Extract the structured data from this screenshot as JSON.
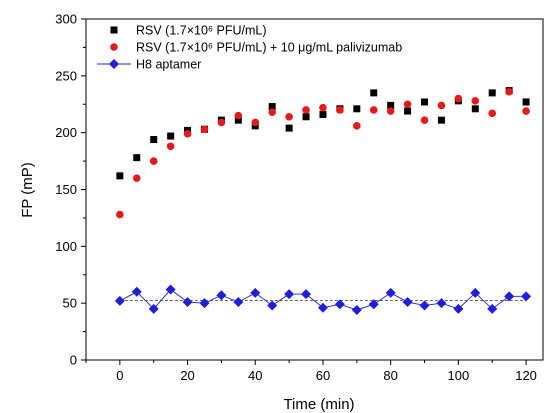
{
  "chart_data": {
    "type": "scatter",
    "xlabel": "Time (min)",
    "ylabel": "FP (mP)",
    "xlim": [
      -10,
      125
    ],
    "ylim": [
      0,
      300
    ],
    "xticks": [
      0,
      20,
      40,
      60,
      80,
      100,
      120
    ],
    "yticks": [
      0,
      50,
      100,
      150,
      200,
      250,
      300
    ],
    "grid": false,
    "legend_position": "top-left",
    "series": [
      {
        "name": "RSV (1.7×10⁶ PFU/mL)",
        "marker": "square",
        "color": "#000000",
        "x": [
          0,
          5,
          10,
          15,
          20,
          25,
          30,
          35,
          40,
          45,
          50,
          55,
          60,
          65,
          70,
          75,
          80,
          85,
          90,
          95,
          100,
          105,
          110,
          115,
          120
        ],
        "y": [
          162,
          178,
          194,
          197,
          202,
          203,
          211,
          211,
          206,
          223,
          204,
          214,
          216,
          221,
          221,
          235,
          224,
          219,
          227,
          211,
          228,
          221,
          235,
          237,
          227
        ]
      },
      {
        "name": "RSV (1.7×10⁶ PFU/mL) + 10 μg/mL palivizumab",
        "marker": "circle",
        "color": "#e31b1b",
        "x": [
          0,
          5,
          10,
          15,
          20,
          25,
          30,
          35,
          40,
          45,
          50,
          55,
          60,
          65,
          70,
          75,
          80,
          85,
          90,
          95,
          100,
          105,
          110,
          115,
          120
        ],
        "y": [
          128,
          160,
          175,
          188,
          199,
          203,
          209,
          215,
          209,
          218,
          214,
          220,
          222,
          220,
          206,
          220,
          219,
          225,
          211,
          224,
          230,
          228,
          217,
          236,
          219
        ]
      },
      {
        "name": "H8 aptamer",
        "marker": "diamond",
        "color": "#1f1fd6",
        "line": "dashed",
        "x": [
          0,
          5,
          10,
          15,
          20,
          25,
          30,
          35,
          40,
          45,
          50,
          55,
          60,
          65,
          70,
          75,
          80,
          85,
          90,
          95,
          100,
          105,
          110,
          115,
          120
        ],
        "y": [
          52,
          60,
          45,
          62,
          51,
          50,
          57,
          51,
          59,
          48,
          58,
          58,
          46,
          49,
          44,
          49,
          59,
          51,
          48,
          50,
          45,
          59,
          45,
          56,
          56
        ]
      }
    ]
  }
}
